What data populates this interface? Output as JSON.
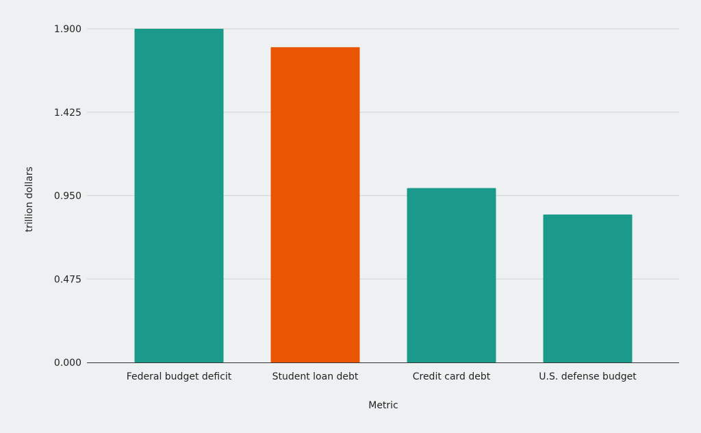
{
  "chart_data": {
    "type": "bar",
    "title": "",
    "xlabel": "Metric",
    "ylabel": "trillion dollars",
    "categories": [
      "Federal budget deficit",
      "Student loan debt",
      "Credit card debt",
      "U.S. defense budget"
    ],
    "values": [
      1.9,
      1.795,
      0.993,
      0.842
    ],
    "highlight_index": 1,
    "ylim": [
      0,
      1.9
    ],
    "yticks": [
      "0.000",
      "0.475",
      "0.950",
      "1.425",
      "1.900"
    ],
    "grid": true,
    "legend": "none",
    "colors": {
      "bar": "#1b998b",
      "highlight": "#ea5504",
      "grid": "#cfd4d4",
      "axis": "#333333",
      "background": "#edf1f1"
    }
  }
}
